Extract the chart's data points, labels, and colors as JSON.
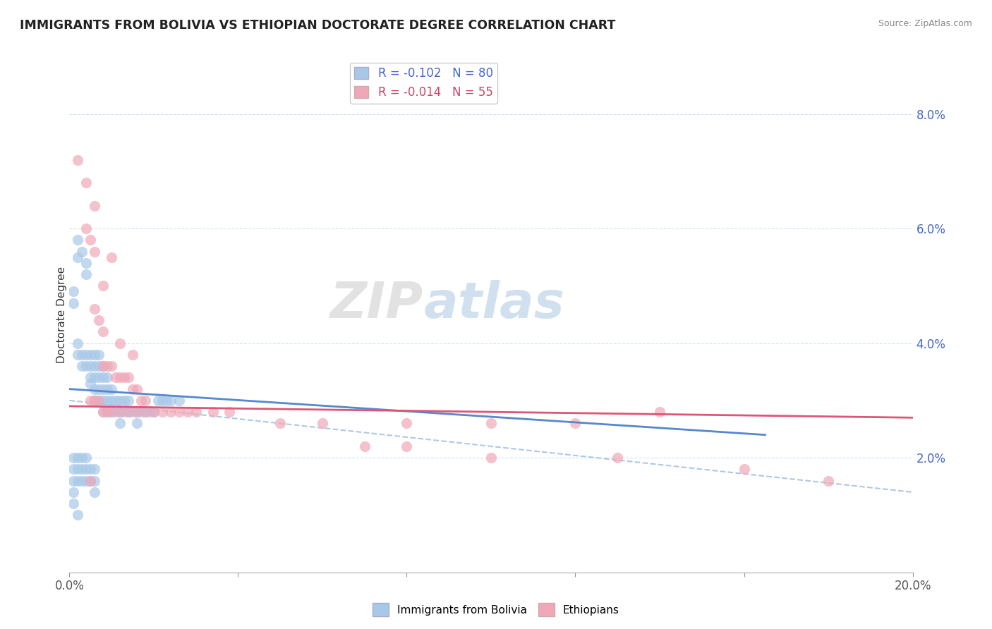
{
  "title": "IMMIGRANTS FROM BOLIVIA VS ETHIOPIAN DOCTORATE DEGREE CORRELATION CHART",
  "source": "Source: ZipAtlas.com",
  "ylabel": "Doctorate Degree",
  "y_tick_labels": [
    "2.0%",
    "4.0%",
    "6.0%",
    "8.0%"
  ],
  "y_tick_values": [
    0.02,
    0.04,
    0.06,
    0.08
  ],
  "x_min": 0.0,
  "x_max": 0.2,
  "y_min": 0.0,
  "y_max": 0.09,
  "legend_bolivia": "R = -0.102   N = 80",
  "legend_ethiopia": "R = -0.014   N = 55",
  "bolivia_color": "#a8c8e8",
  "ethiopia_color": "#f0a8b8",
  "bolivia_line_color": "#5588cc",
  "ethiopia_line_color": "#dd5577",
  "dashed_line_color": "#99bbdd",
  "watermark_zip": "ZIP",
  "watermark_atlas": "atlas",
  "bolivia_points": [
    [
      0.001,
      0.049
    ],
    [
      0.001,
      0.047
    ],
    [
      0.002,
      0.058
    ],
    [
      0.002,
      0.055
    ],
    [
      0.002,
      0.04
    ],
    [
      0.002,
      0.038
    ],
    [
      0.003,
      0.056
    ],
    [
      0.003,
      0.038
    ],
    [
      0.003,
      0.036
    ],
    [
      0.004,
      0.054
    ],
    [
      0.004,
      0.052
    ],
    [
      0.004,
      0.038
    ],
    [
      0.004,
      0.036
    ],
    [
      0.005,
      0.038
    ],
    [
      0.005,
      0.036
    ],
    [
      0.005,
      0.034
    ],
    [
      0.005,
      0.033
    ],
    [
      0.006,
      0.038
    ],
    [
      0.006,
      0.036
    ],
    [
      0.006,
      0.034
    ],
    [
      0.006,
      0.032
    ],
    [
      0.006,
      0.03
    ],
    [
      0.007,
      0.038
    ],
    [
      0.007,
      0.036
    ],
    [
      0.007,
      0.034
    ],
    [
      0.007,
      0.032
    ],
    [
      0.007,
      0.03
    ],
    [
      0.008,
      0.036
    ],
    [
      0.008,
      0.034
    ],
    [
      0.008,
      0.032
    ],
    [
      0.008,
      0.03
    ],
    [
      0.008,
      0.028
    ],
    [
      0.009,
      0.034
    ],
    [
      0.009,
      0.032
    ],
    [
      0.009,
      0.03
    ],
    [
      0.009,
      0.028
    ],
    [
      0.01,
      0.032
    ],
    [
      0.01,
      0.03
    ],
    [
      0.01,
      0.028
    ],
    [
      0.011,
      0.03
    ],
    [
      0.011,
      0.028
    ],
    [
      0.012,
      0.03
    ],
    [
      0.012,
      0.028
    ],
    [
      0.012,
      0.026
    ],
    [
      0.013,
      0.03
    ],
    [
      0.013,
      0.028
    ],
    [
      0.014,
      0.03
    ],
    [
      0.014,
      0.028
    ],
    [
      0.015,
      0.028
    ],
    [
      0.016,
      0.028
    ],
    [
      0.016,
      0.026
    ],
    [
      0.017,
      0.028
    ],
    [
      0.018,
      0.028
    ],
    [
      0.019,
      0.028
    ],
    [
      0.02,
      0.028
    ],
    [
      0.021,
      0.03
    ],
    [
      0.022,
      0.03
    ],
    [
      0.023,
      0.03
    ],
    [
      0.024,
      0.03
    ],
    [
      0.026,
      0.03
    ],
    [
      0.001,
      0.02
    ],
    [
      0.001,
      0.018
    ],
    [
      0.001,
      0.016
    ],
    [
      0.001,
      0.014
    ],
    [
      0.002,
      0.02
    ],
    [
      0.002,
      0.018
    ],
    [
      0.002,
      0.016
    ],
    [
      0.003,
      0.02
    ],
    [
      0.003,
      0.018
    ],
    [
      0.003,
      0.016
    ],
    [
      0.004,
      0.02
    ],
    [
      0.004,
      0.018
    ],
    [
      0.004,
      0.016
    ],
    [
      0.005,
      0.018
    ],
    [
      0.005,
      0.016
    ],
    [
      0.006,
      0.018
    ],
    [
      0.006,
      0.016
    ],
    [
      0.006,
      0.014
    ],
    [
      0.001,
      0.012
    ],
    [
      0.002,
      0.01
    ]
  ],
  "ethiopia_points": [
    [
      0.002,
      0.072
    ],
    [
      0.004,
      0.068
    ],
    [
      0.006,
      0.064
    ],
    [
      0.004,
      0.06
    ],
    [
      0.005,
      0.058
    ],
    [
      0.006,
      0.056
    ],
    [
      0.008,
      0.05
    ],
    [
      0.006,
      0.046
    ],
    [
      0.007,
      0.044
    ],
    [
      0.008,
      0.042
    ],
    [
      0.01,
      0.055
    ],
    [
      0.012,
      0.04
    ],
    [
      0.015,
      0.038
    ],
    [
      0.008,
      0.036
    ],
    [
      0.009,
      0.036
    ],
    [
      0.01,
      0.036
    ],
    [
      0.011,
      0.034
    ],
    [
      0.012,
      0.034
    ],
    [
      0.013,
      0.034
    ],
    [
      0.014,
      0.034
    ],
    [
      0.015,
      0.032
    ],
    [
      0.016,
      0.032
    ],
    [
      0.017,
      0.03
    ],
    [
      0.018,
      0.03
    ],
    [
      0.005,
      0.03
    ],
    [
      0.006,
      0.03
    ],
    [
      0.007,
      0.03
    ],
    [
      0.008,
      0.028
    ],
    [
      0.009,
      0.028
    ],
    [
      0.01,
      0.028
    ],
    [
      0.012,
      0.028
    ],
    [
      0.014,
      0.028
    ],
    [
      0.016,
      0.028
    ],
    [
      0.018,
      0.028
    ],
    [
      0.02,
      0.028
    ],
    [
      0.022,
      0.028
    ],
    [
      0.024,
      0.028
    ],
    [
      0.026,
      0.028
    ],
    [
      0.028,
      0.028
    ],
    [
      0.03,
      0.028
    ],
    [
      0.034,
      0.028
    ],
    [
      0.038,
      0.028
    ],
    [
      0.05,
      0.026
    ],
    [
      0.06,
      0.026
    ],
    [
      0.08,
      0.026
    ],
    [
      0.1,
      0.026
    ],
    [
      0.12,
      0.026
    ],
    [
      0.14,
      0.028
    ],
    [
      0.07,
      0.022
    ],
    [
      0.08,
      0.022
    ],
    [
      0.1,
      0.02
    ],
    [
      0.13,
      0.02
    ],
    [
      0.16,
      0.018
    ],
    [
      0.18,
      0.016
    ],
    [
      0.005,
      0.016
    ]
  ],
  "bolivia_line_x": [
    0.0,
    0.165
  ],
  "bolivia_line_y": [
    0.032,
    0.024
  ],
  "ethiopia_line_x": [
    0.0,
    0.2
  ],
  "ethiopia_line_y": [
    0.029,
    0.027
  ],
  "dashed_line_x": [
    0.0,
    0.2
  ],
  "dashed_line_y": [
    0.03,
    0.014
  ]
}
